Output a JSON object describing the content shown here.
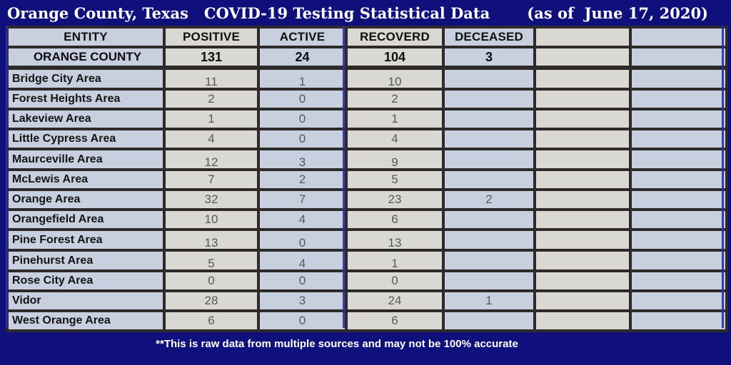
{
  "title": {
    "main": "Orange County, Texas   COVID-19 Testing Statistical Data",
    "date": "(as of  June 17, 2020)"
  },
  "table": {
    "headers": {
      "entity": "ENTITY",
      "positive": "POSITIVE",
      "active": "ACTIVE",
      "recovered": "RECOVERD",
      "deceased": "DECEASED",
      "extra1": "",
      "extra2": ""
    },
    "summary": {
      "entity": "ORANGE COUNTY",
      "positive": "131",
      "active": "24",
      "recovered": "104",
      "deceased": "3"
    },
    "rows": [
      {
        "entity": "Bridge City Area",
        "positive": "11",
        "active": "1",
        "recovered": "10",
        "deceased": ""
      },
      {
        "entity": "Forest Heights Area",
        "positive": "2",
        "active": "0",
        "recovered": "2",
        "deceased": ""
      },
      {
        "entity": "Lakeview Area",
        "positive": "1",
        "active": "0",
        "recovered": "1",
        "deceased": ""
      },
      {
        "entity": "Little Cypress Area",
        "positive": "4",
        "active": "0",
        "recovered": "4",
        "deceased": ""
      },
      {
        "entity": "Maurceville Area",
        "positive": "12",
        "active": "3",
        "recovered": "9",
        "deceased": ""
      },
      {
        "entity": "McLewis Area",
        "positive": "7",
        "active": "2",
        "recovered": "5",
        "deceased": ""
      },
      {
        "entity": "Orange Area",
        "positive": "32",
        "active": "7",
        "recovered": "23",
        "deceased": "2"
      },
      {
        "entity": "Orangefield Area",
        "positive": "10",
        "active": "4",
        "recovered": "6",
        "deceased": ""
      },
      {
        "entity": "Pine Forest Area",
        "positive": "13",
        "active": "0",
        "recovered": "13",
        "deceased": ""
      },
      {
        "entity": "Pinehurst Area",
        "positive": "5",
        "active": "4",
        "recovered": "1",
        "deceased": ""
      },
      {
        "entity": "Rose City Area",
        "positive": "0",
        "active": "0",
        "recovered": "0",
        "deceased": ""
      },
      {
        "entity": "Vidor",
        "positive": "28",
        "active": "3",
        "recovered": "24",
        "deceased": "1"
      },
      {
        "entity": "West Orange Area",
        "positive": "6",
        "active": "0",
        "recovered": "6",
        "deceased": ""
      }
    ]
  },
  "footer": {
    "note": "**This is raw data from multiple sources and may not be 100% accurate"
  },
  "colors": {
    "background": "#10107C",
    "grid": "#2E2A29",
    "cell_gray": "#D9D8D3",
    "cell_blue": "#C8D0DF",
    "accent_line": "#2B2BA8",
    "number_gray": "#58585C"
  }
}
